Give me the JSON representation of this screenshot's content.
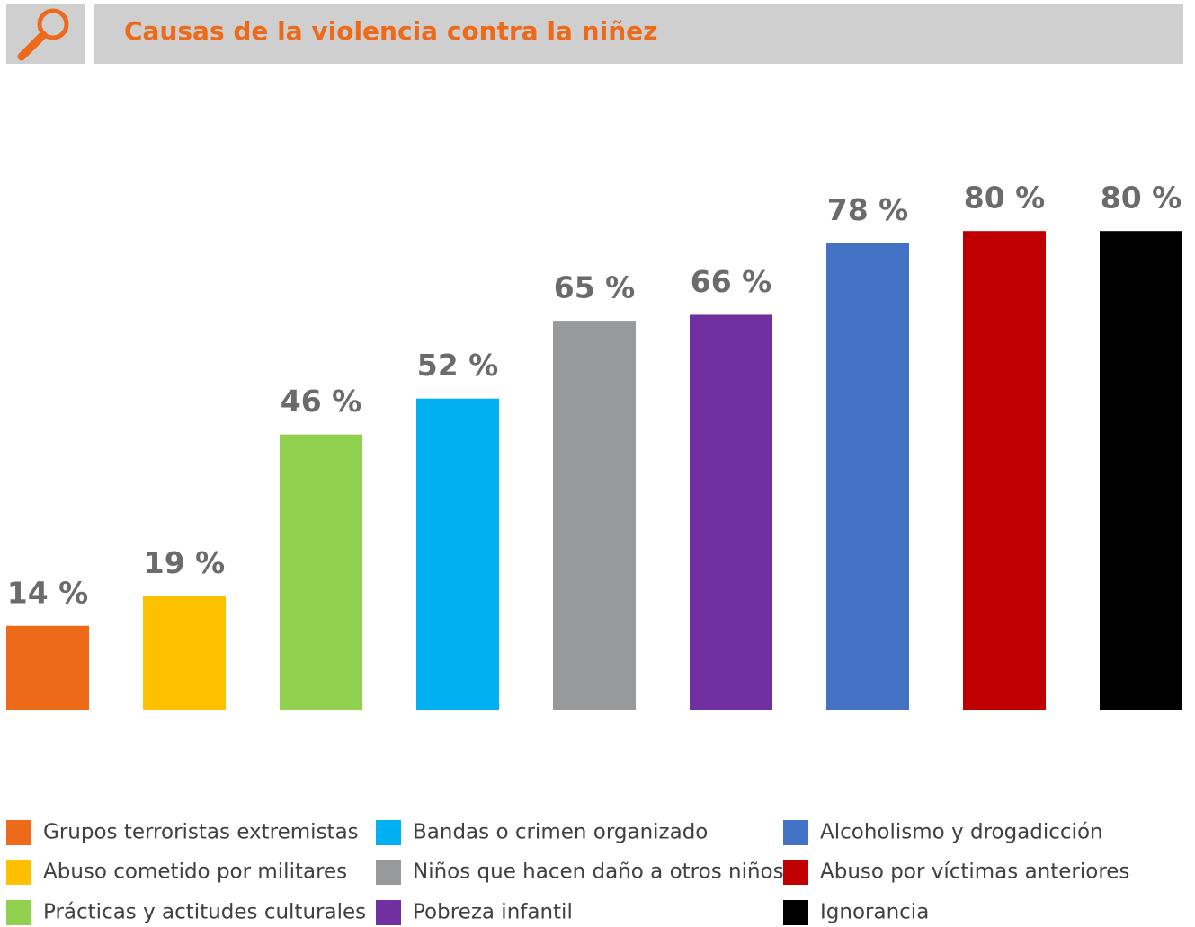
{
  "chart_data": {
    "type": "bar",
    "title": "Causas de la violencia contra la niñez",
    "categories": [
      "Grupos terroristas extremistas",
      "Abuso cometido por militares",
      "Prácticas y actitudes culturales",
      "Bandas o crimen organizado",
      "Niños que hacen daño a otros niños",
      "Pobreza infantil",
      "Alcoholismo y drogadicción",
      "Abuso por víctimas anteriores",
      "Ignorancia"
    ],
    "values": [
      14,
      19,
      46,
      52,
      65,
      66,
      78,
      80,
      80
    ],
    "value_labels": [
      "14 %",
      "19 %",
      "46 %",
      "52 %",
      "65 %",
      "66 %",
      "78 %",
      "80 %",
      "80 %"
    ],
    "colors": [
      "#ED6A1A",
      "#FFC000",
      "#92D050",
      "#00B0F0",
      "#98999B",
      "#7030A0",
      "#4472C4",
      "#C00000",
      "#000000"
    ],
    "ylim": [
      0,
      100
    ]
  }
}
